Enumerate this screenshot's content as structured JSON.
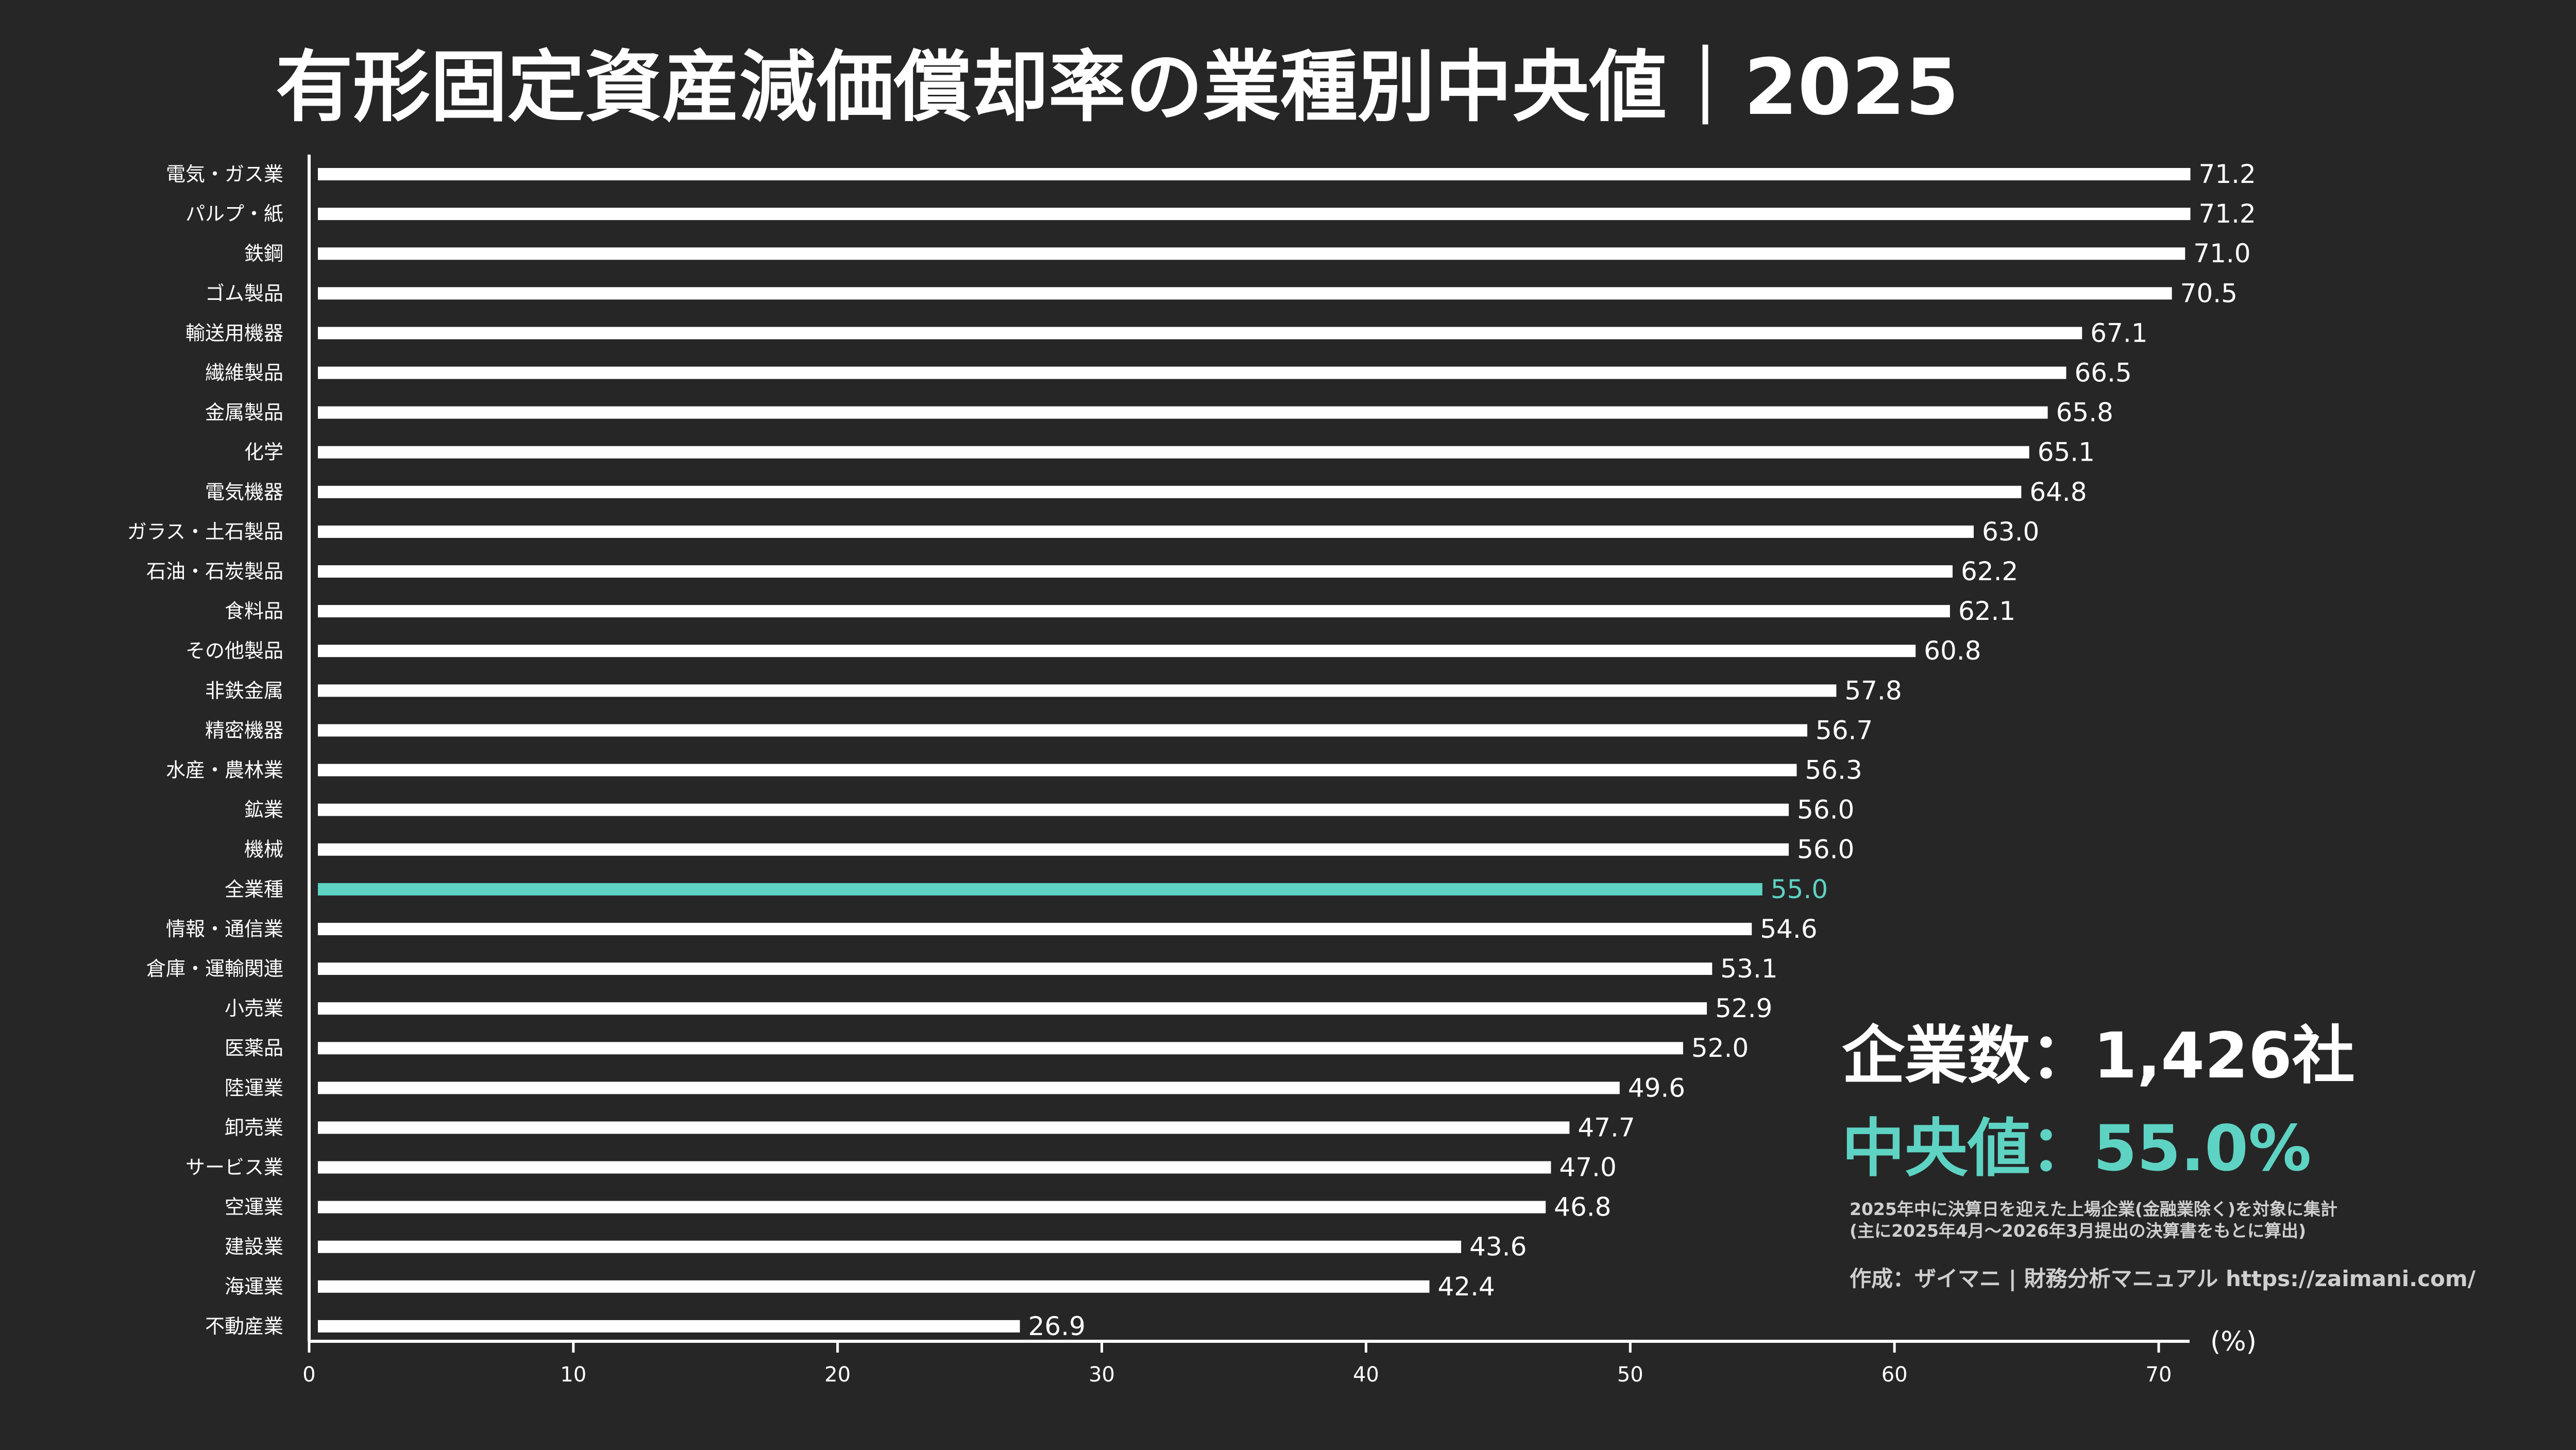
{
  "title": "有形固定資産減価償却率の業種別中央値｜2025",
  "info": {
    "count": "企業数：1,426社",
    "median": "中央値：55.0%",
    "note_line1": "2025年中に決算日を迎えた上場企業(金融業除く)を対象に集計",
    "note_line2": "(主に2025年4月〜2026年3月提出の決算書をもとに算出)",
    "credit": "作成：ザイマニ | 財務分析マニュアル https://zaimani.com/"
  },
  "colors": {
    "background": "#262626",
    "bar": "#ffffff",
    "highlight": "#5ed3c3",
    "text": "#ffffff",
    "note": "#cfcfcf"
  },
  "chart_data": {
    "type": "bar",
    "orientation": "horizontal",
    "unit_label": "(%)",
    "xlim": [
      0,
      70
    ],
    "xticks": [
      0,
      10,
      20,
      30,
      40,
      50,
      60,
      70
    ],
    "grid": false,
    "highlight_category": "全業種",
    "categories": [
      "電気・ガス業",
      "パルプ・紙",
      "鉄鋼",
      "ゴム製品",
      "輸送用機器",
      "繊維製品",
      "金属製品",
      "化学",
      "電気機器",
      "ガラス・土石製品",
      "石油・石炭製品",
      "食料品",
      "その他製品",
      "非鉄金属",
      "精密機器",
      "水産・農林業",
      "鉱業",
      "機械",
      "全業種",
      "情報・通信業",
      "倉庫・運輸関連",
      "小売業",
      "医薬品",
      "陸運業",
      "卸売業",
      "サービス業",
      "空運業",
      "建設業",
      "海運業",
      "不動産業"
    ],
    "values": [
      71.2,
      71.2,
      71.0,
      70.5,
      67.1,
      66.5,
      65.8,
      65.1,
      64.8,
      63.0,
      62.2,
      62.1,
      60.8,
      57.8,
      56.7,
      56.3,
      56.0,
      56.0,
      55.0,
      54.6,
      53.1,
      52.9,
      52.0,
      49.6,
      47.7,
      47.0,
      46.8,
      43.6,
      42.4,
      26.9
    ],
    "value_labels": [
      "71.2",
      "71.2",
      "71.0",
      "70.5",
      "67.1",
      "66.5",
      "65.8",
      "65.1",
      "64.8",
      "63.0",
      "62.2",
      "62.1",
      "60.8",
      "57.8",
      "56.7",
      "56.3",
      "56.0",
      "56.0",
      "55.0",
      "54.6",
      "53.1",
      "52.9",
      "52.0",
      "49.6",
      "47.7",
      "47.0",
      "46.8",
      "43.6",
      "42.4",
      "26.9"
    ]
  }
}
